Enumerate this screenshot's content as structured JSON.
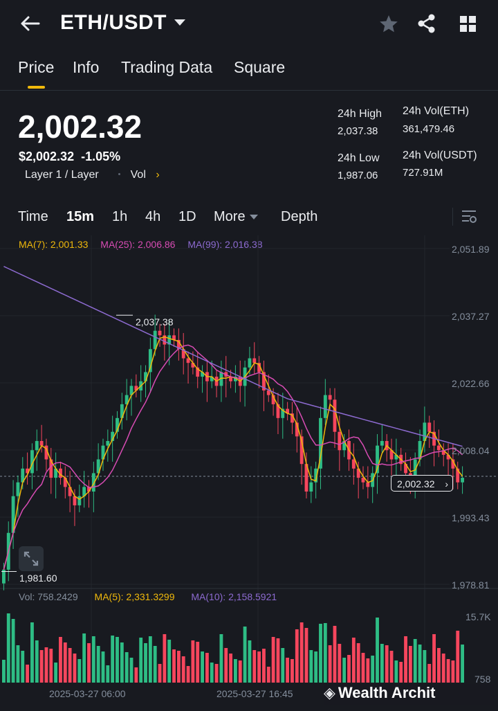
{
  "header": {
    "pair": "ETH/USDT",
    "icons": [
      "back-arrow-icon",
      "chevron-down-icon",
      "star-icon",
      "share-icon",
      "grid-icon"
    ]
  },
  "tabs": [
    {
      "label": "Price",
      "active": true
    },
    {
      "label": "Info"
    },
    {
      "label": "Trading Data"
    },
    {
      "label": "Square"
    }
  ],
  "price": {
    "last": "2,002.32",
    "usd": "$2,002.32",
    "change": "-1.05%",
    "tag": "Layer 1 / Layer",
    "vol_link": "Vol"
  },
  "stats": {
    "high_label": "24h High",
    "high": "2,037.38",
    "low_label": "24h Low",
    "low": "1,987.06",
    "vol_eth_label": "24h Vol(ETH)",
    "vol_eth": "361,479.46",
    "vol_usdt_label": "24h Vol(USDT)",
    "vol_usdt": "727.91M"
  },
  "intervals": {
    "time": "Time",
    "m15": "15m",
    "h1": "1h",
    "h4": "4h",
    "d1": "1D",
    "more": "More",
    "depth": "Depth"
  },
  "indicators": {
    "ma7": "MA(7): 2,001.33",
    "ma25": "MA(25): 2,006.86",
    "ma99": "MA(99): 2,016.38",
    "vol": "Vol: 758.2429",
    "vma5": "MA(5): 2,331.3299",
    "vma10": "MA(10): 2,158.5921"
  },
  "colors": {
    "up": "#2ebd85",
    "down": "#f6465d",
    "ma7": "#f0b90b",
    "ma25": "#d84cb4",
    "ma99": "#8d6bd1",
    "accent": "#f0b90b"
  },
  "chart_data": {
    "type": "candlestick",
    "y_labels": [
      "2,051.89",
      "2,037.27",
      "2,022.66",
      "2,008.04",
      "1,993.43",
      "1,978.81"
    ],
    "ylim": [
      1978.81,
      2051.89
    ],
    "x_labels": [
      "2025-03-27 06:00",
      "2025-03-27 16:45"
    ],
    "high_marker": "2,037.38",
    "low_marker": "1,981.60",
    "current_price": "2,002.32",
    "volume_labels": [
      "15.7K",
      "758"
    ],
    "ohlc_close": [
      1982,
      1990,
      1998,
      2001,
      2004,
      2003,
      2008,
      2010,
      2009,
      2006,
      2002,
      2004,
      2002,
      2000,
      1998,
      1996,
      1998,
      2000,
      1999,
      2003,
      2006,
      2009,
      2010,
      2012,
      2015,
      2018,
      2020,
      2022,
      2021,
      2023,
      2025,
      2030,
      2034,
      2033,
      2031,
      2033,
      2032,
      2030,
      2028,
      2027,
      2026,
      2024,
      2025,
      2023,
      2024,
      2022,
      2025,
      2024,
      2023,
      2024,
      2022,
      2026,
      2028,
      2027,
      2025,
      2021,
      2020,
      2018,
      2015,
      2017,
      2016,
      2014,
      2011,
      2005,
      1999,
      2001,
      2004,
      2015,
      2020,
      2019,
      2012,
      2008,
      2010,
      2006,
      2004,
      2002,
      2001,
      2000,
      2003,
      2009,
      2010,
      2008,
      2006,
      2007,
      2005,
      2003,
      2002,
      2006,
      2010,
      2014,
      2012,
      2009,
      2008,
      2007,
      2006,
      2004,
      2001,
      2002
    ]
  },
  "watermark": "Wealth Archit"
}
